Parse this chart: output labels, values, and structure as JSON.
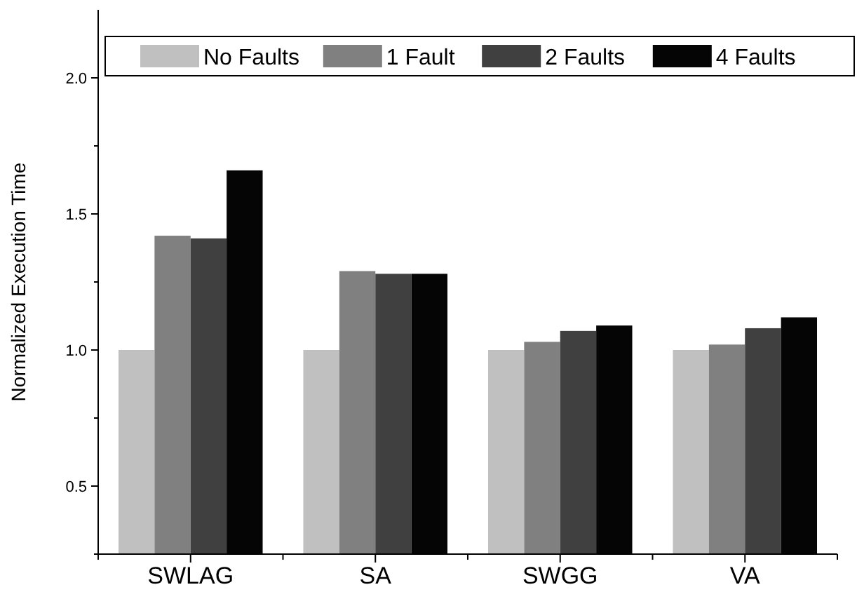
{
  "chart_data": {
    "type": "bar",
    "ylabel": "Normalized Execution Time",
    "categories": [
      "SWLAG",
      "SA",
      "SWGG",
      "VA"
    ],
    "series": [
      {
        "name": "No Faults",
        "color": "#c0c0c0",
        "values": [
          1.0,
          1.0,
          1.0,
          1.0
        ]
      },
      {
        "name": "1 Fault",
        "color": "#808080",
        "values": [
          1.42,
          1.29,
          1.03,
          1.02
        ]
      },
      {
        "name": "2 Faults",
        "color": "#404040",
        "values": [
          1.41,
          1.28,
          1.07,
          1.08
        ]
      },
      {
        "name": "4 Faults",
        "color": "#050505",
        "values": [
          1.66,
          1.28,
          1.09,
          1.12
        ]
      }
    ],
    "ylim": [
      0.25,
      2.25
    ],
    "yticks": [
      {
        "value": 0.25,
        "label": null
      },
      0.5,
      {
        "value": 0.75,
        "label": null
      },
      {
        "value": 1,
        "label": "1.0"
      },
      {
        "value": 1.25,
        "label": null
      },
      1.5,
      {
        "value": 1.75,
        "label": null
      },
      {
        "value": 2,
        "label": "2.0"
      }
    ],
    "legend": "top",
    "grid": false
  }
}
